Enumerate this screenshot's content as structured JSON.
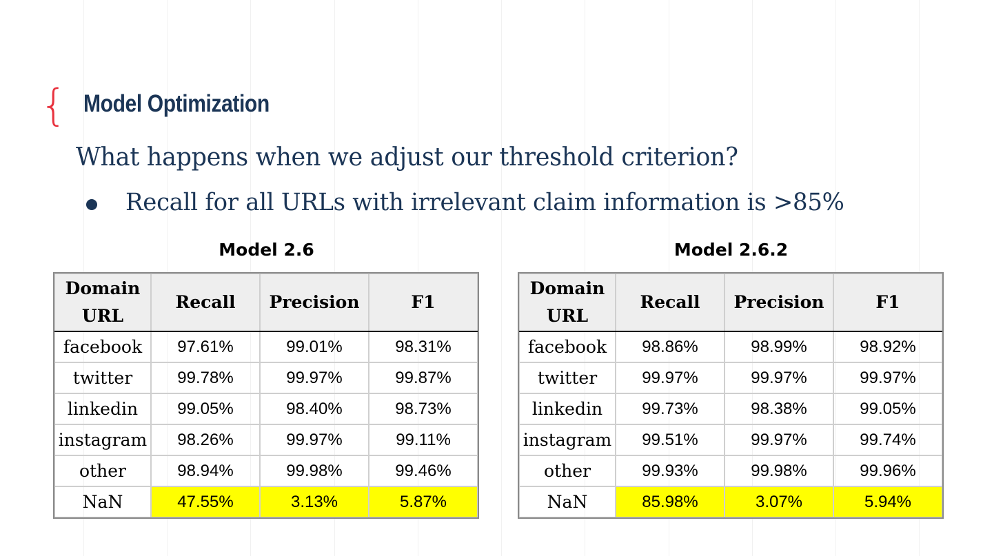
{
  "slide": {
    "brace": "{",
    "title": "Model Optimization",
    "question": "What happens when we adjust our threshold criterion?",
    "bullet": "Recall for all URLs with irrelevant claim information is >85%"
  },
  "headers": {
    "domain": "Domain URL",
    "recall": "Recall",
    "precision": "Precision",
    "f1": "F1"
  },
  "colors": {
    "title": "#1b3556",
    "accent": "#e8333f",
    "highlight": "#ffff00"
  },
  "tables": [
    {
      "name": "Model 2.6",
      "rows": [
        {
          "domain": "facebook",
          "recall": "97.61%",
          "precision": "99.01%",
          "f1": "98.31%"
        },
        {
          "domain": "twitter",
          "recall": "99.78%",
          "precision": "99.97%",
          "f1": "99.87%"
        },
        {
          "domain": "linkedin",
          "recall": "99.05%",
          "precision": "98.40%",
          "f1": "98.73%"
        },
        {
          "domain": "instagram",
          "recall": "98.26%",
          "precision": "99.97%",
          "f1": "99.11%"
        },
        {
          "domain": "other",
          "recall": "98.94%",
          "precision": "99.98%",
          "f1": "99.46%"
        },
        {
          "domain": "NaN",
          "recall": "47.55%",
          "precision": "3.13%",
          "f1": "5.87%"
        }
      ]
    },
    {
      "name": "Model 2.6.2",
      "rows": [
        {
          "domain": "facebook",
          "recall": "98.86%",
          "precision": "98.99%",
          "f1": "98.92%"
        },
        {
          "domain": "twitter",
          "recall": "99.97%",
          "precision": "99.97%",
          "f1": "99.97%"
        },
        {
          "domain": "linkedin",
          "recall": "99.73%",
          "precision": "98.38%",
          "f1": "99.05%"
        },
        {
          "domain": "instagram",
          "recall": "99.51%",
          "precision": "99.97%",
          "f1": "99.74%"
        },
        {
          "domain": "other",
          "recall": "99.93%",
          "precision": "99.98%",
          "f1": "99.96%"
        },
        {
          "domain": "NaN",
          "recall": "85.98%",
          "precision": "3.07%",
          "f1": "5.94%"
        }
      ]
    }
  ]
}
